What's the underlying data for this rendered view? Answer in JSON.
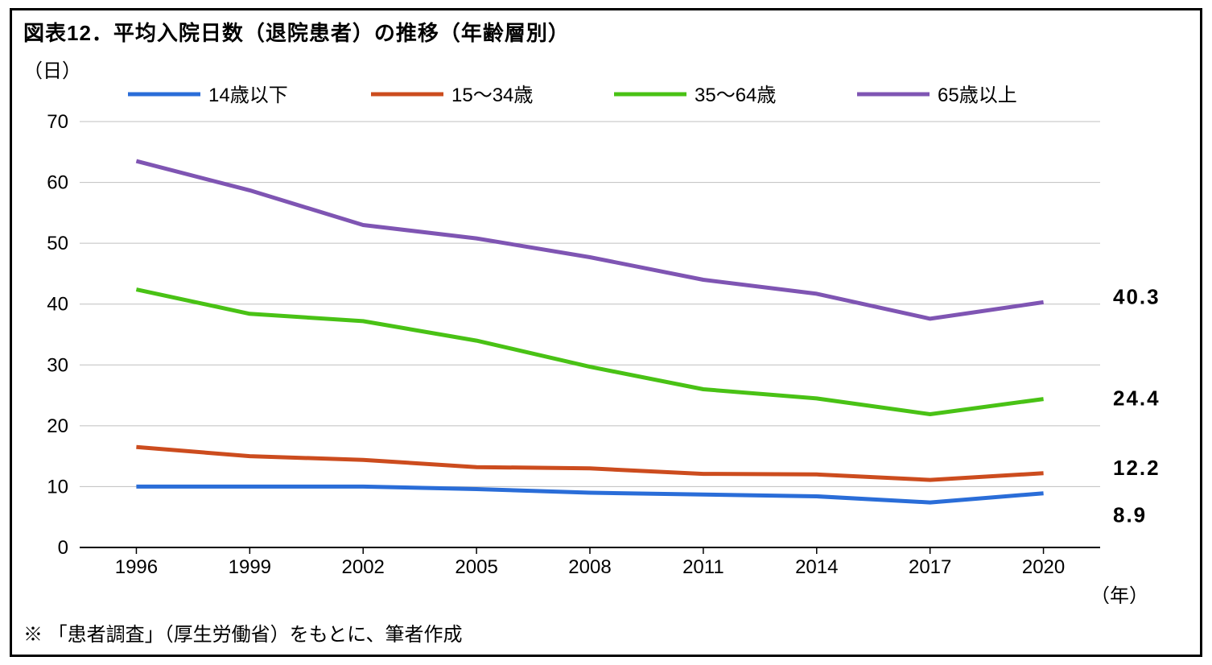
{
  "title": "図表12．平均入院日数（退院患者）の推移（年齢層別）",
  "y_axis_label": "（日）",
  "x_axis_label": "（年）",
  "footnote": "※ 「患者調査」（厚生労働省）をもとに、筆者作成",
  "chart": {
    "type": "line",
    "background_color": "#ffffff",
    "grid_color": "#bfbfbf",
    "axis_color": "#000000",
    "axis_width": 2,
    "line_width": 5,
    "legend_line_width": 5,
    "legend_line_length": 90,
    "tick_fontsize": 24,
    "label_fontsize": 24,
    "title_fontsize": 26,
    "end_label_fontsize": 26,
    "ylim": [
      0,
      70
    ],
    "ytick_step": 10,
    "x_categories": [
      "1996",
      "1999",
      "2002",
      "2005",
      "2008",
      "2011",
      "2014",
      "2017",
      "2020"
    ],
    "series": [
      {
        "name": "14歳以下",
        "color": "#2a6dd8",
        "values": [
          10.0,
          10.0,
          10.0,
          9.6,
          9.0,
          8.7,
          8.4,
          7.4,
          8.9
        ],
        "end_label": "8.9",
        "end_label_offset_y": 28
      },
      {
        "name": "15～34歳",
        "color": "#cc4c1e",
        "values": [
          16.5,
          15.0,
          14.4,
          13.2,
          13.0,
          12.1,
          12.0,
          11.1,
          12.2
        ],
        "end_label": "12.2",
        "end_label_offset_y": -6
      },
      {
        "name": "35～64歳",
        "color": "#49c215",
        "values": [
          42.4,
          38.4,
          37.2,
          34.0,
          29.7,
          26.0,
          24.5,
          21.9,
          24.4
        ],
        "end_label": "24.4",
        "end_label_offset_y": 0
      },
      {
        "name": "65歳以上",
        "color": "#7f55b3",
        "values": [
          63.5,
          58.7,
          53.0,
          50.8,
          47.7,
          44.0,
          41.7,
          37.6,
          40.3
        ],
        "end_label": "40.3",
        "end_label_offset_y": -6
      }
    ]
  }
}
